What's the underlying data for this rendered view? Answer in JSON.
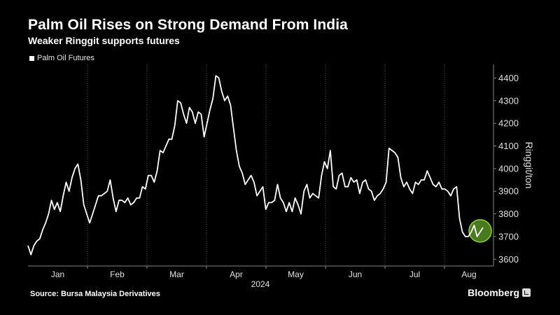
{
  "header": {
    "title": "Palm Oil Rises on Strong Demand From India",
    "subtitle": "Weaker Ringgit supports futures"
  },
  "legend": {
    "label": "Palm Oil Futures"
  },
  "footer": {
    "source": "Source: Bursa Malaysia Derivatives",
    "brand": "Bloomberg"
  },
  "colors": {
    "background": "#000000",
    "line": "#ffffff",
    "grid": "#555555",
    "highlight_fill": "#4a7a1e",
    "highlight_stroke": "#8fd13b"
  },
  "chart_data": {
    "type": "line",
    "title": "Palm Oil Rises on Strong Demand From India",
    "subtitle": "Weaker Ringgit supports futures",
    "ylabel": "Ringgit/ton",
    "xlabel": "",
    "year_label": "2024",
    "ylim": [
      3570,
      4460
    ],
    "yticks": [
      3600,
      3700,
      3800,
      3900,
      4000,
      4100,
      4200,
      4300,
      4400
    ],
    "months": [
      "Jan",
      "Feb",
      "Mar",
      "Apr",
      "May",
      "Jun",
      "Jul",
      "Aug"
    ],
    "grid": "vertical-dotted",
    "legend_position": "top-left",
    "highlight": "last-point",
    "series": [
      {
        "name": "Palm Oil Futures",
        "values": [
          3660,
          3620,
          3660,
          3680,
          3690,
          3730,
          3760,
          3800,
          3860,
          3820,
          3850,
          3810,
          3880,
          3940,
          3900,
          3960,
          4000,
          4020,
          3950,
          3840,
          3800,
          3760,
          3800,
          3840,
          3880,
          3880,
          3890,
          3900,
          3950,
          3870,
          3810,
          3860,
          3860,
          3850,
          3870,
          3840,
          3850,
          3870,
          3870,
          3920,
          3910,
          3970,
          3970,
          3940,
          3990,
          4080,
          4070,
          4100,
          4130,
          4130,
          4190,
          4300,
          4290,
          4240,
          4200,
          4270,
          4250,
          4200,
          4250,
          4240,
          4140,
          4200,
          4260,
          4310,
          4410,
          4400,
          4340,
          4300,
          4320,
          4280,
          4180,
          4080,
          4010,
          3980,
          3930,
          3950,
          3970,
          3940,
          3880,
          3900,
          3920,
          3820,
          3850,
          3850,
          3860,
          3930,
          3870,
          3850,
          3810,
          3850,
          3810,
          3870,
          3840,
          3800,
          3900,
          3930,
          3870,
          3890,
          3880,
          3870,
          3970,
          4030,
          4000,
          4080,
          3920,
          3910,
          3970,
          3980,
          3920,
          3920,
          3960,
          3940,
          3950,
          3890,
          3940,
          3950,
          3910,
          3900,
          3860,
          3880,
          3890,
          3910,
          3940,
          4090,
          4080,
          4070,
          4050,
          3960,
          3920,
          3940,
          3910,
          3890,
          3940,
          3930,
          3950,
          3950,
          3990,
          3960,
          3930,
          3920,
          3940,
          3910,
          3910,
          3900,
          3880,
          3910,
          3920,
          3780,
          3720,
          3700,
          3700,
          3720,
          3750,
          3700,
          3720,
          3740
        ]
      }
    ]
  }
}
